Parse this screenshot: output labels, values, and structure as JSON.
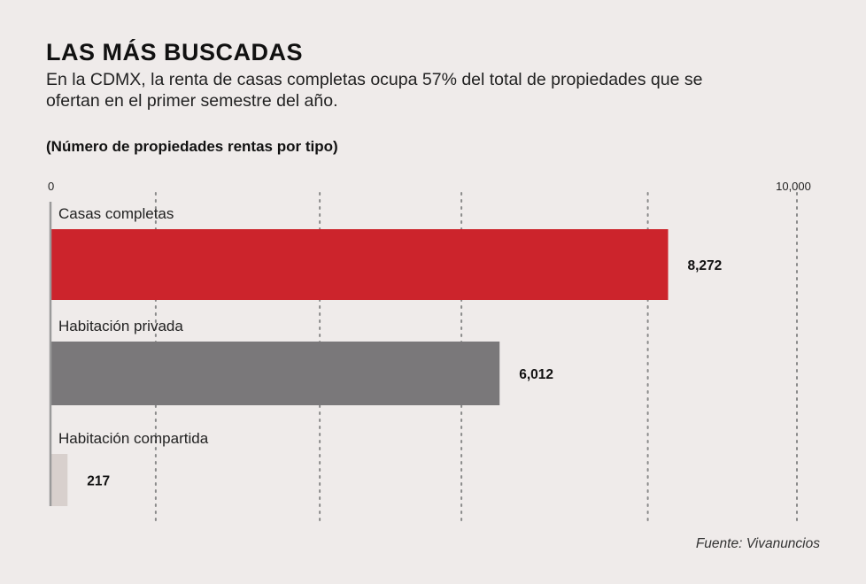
{
  "title": "LAS MÁS BUSCADAS",
  "subtitle": "En la CDMX, la renta de casas completas ocupa 57% del total de propiedades que se ofertan en el primer semestre del año.",
  "units_note": "(Número de propiedades rentas por tipo)",
  "source": "Fuente: Vivanuncios",
  "chart_data": {
    "type": "bar",
    "orientation": "horizontal",
    "categories": [
      "Casas completas",
      "Habitación privada",
      "Habitación compartida"
    ],
    "values": [
      8272,
      6012,
      217
    ],
    "value_labels": [
      "8,272",
      "6,012",
      "217"
    ],
    "colors": [
      "#cc242c",
      "#7a787a",
      "#d8d0cd"
    ],
    "xlim": [
      0,
      10000
    ],
    "tick_labels": [
      {
        "value": 0,
        "label": "0"
      },
      {
        "value": 10000,
        "label": "10,000"
      }
    ],
    "gridlines": [
      1400,
      3600,
      5500,
      8000,
      10000
    ],
    "grid": true
  }
}
